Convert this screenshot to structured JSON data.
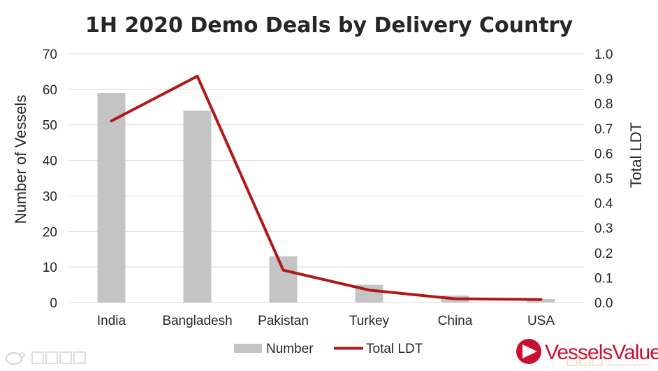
{
  "chart_data": {
    "type": "bar",
    "title": "1H 2020 Demo Deals by Delivery Country",
    "categories": [
      "India",
      "Bangladesh",
      "Pakistan",
      "Turkey",
      "China",
      "USA"
    ],
    "series": [
      {
        "name": "Number",
        "type": "bar",
        "axis": "left",
        "color": "#c4c4c4",
        "values": [
          59,
          54,
          13,
          5,
          2,
          1
        ]
      },
      {
        "name": "Total LDT",
        "type": "line",
        "axis": "right",
        "color": "#b01818",
        "values": [
          0.73,
          0.91,
          0.13,
          0.05,
          0.015,
          0.012
        ]
      }
    ],
    "ylabel": "Number of Vessels",
    "ylabel_right": "Total LDT",
    "ylim": [
      0,
      70
    ],
    "ylim_right": [
      0,
      1.0
    ],
    "yticks": [
      "0",
      "10",
      "20",
      "30",
      "40",
      "50",
      "60",
      "70"
    ],
    "yticks_right": [
      "0.0",
      "0.1",
      "0.2",
      "0.3",
      "0.4",
      "0.5",
      "0.6",
      "0.7",
      "0.8",
      "0.9",
      "1.0"
    ],
    "grid": true,
    "legend_position": "bottom"
  },
  "branding": {
    "logo_text": "VesselsValue"
  }
}
